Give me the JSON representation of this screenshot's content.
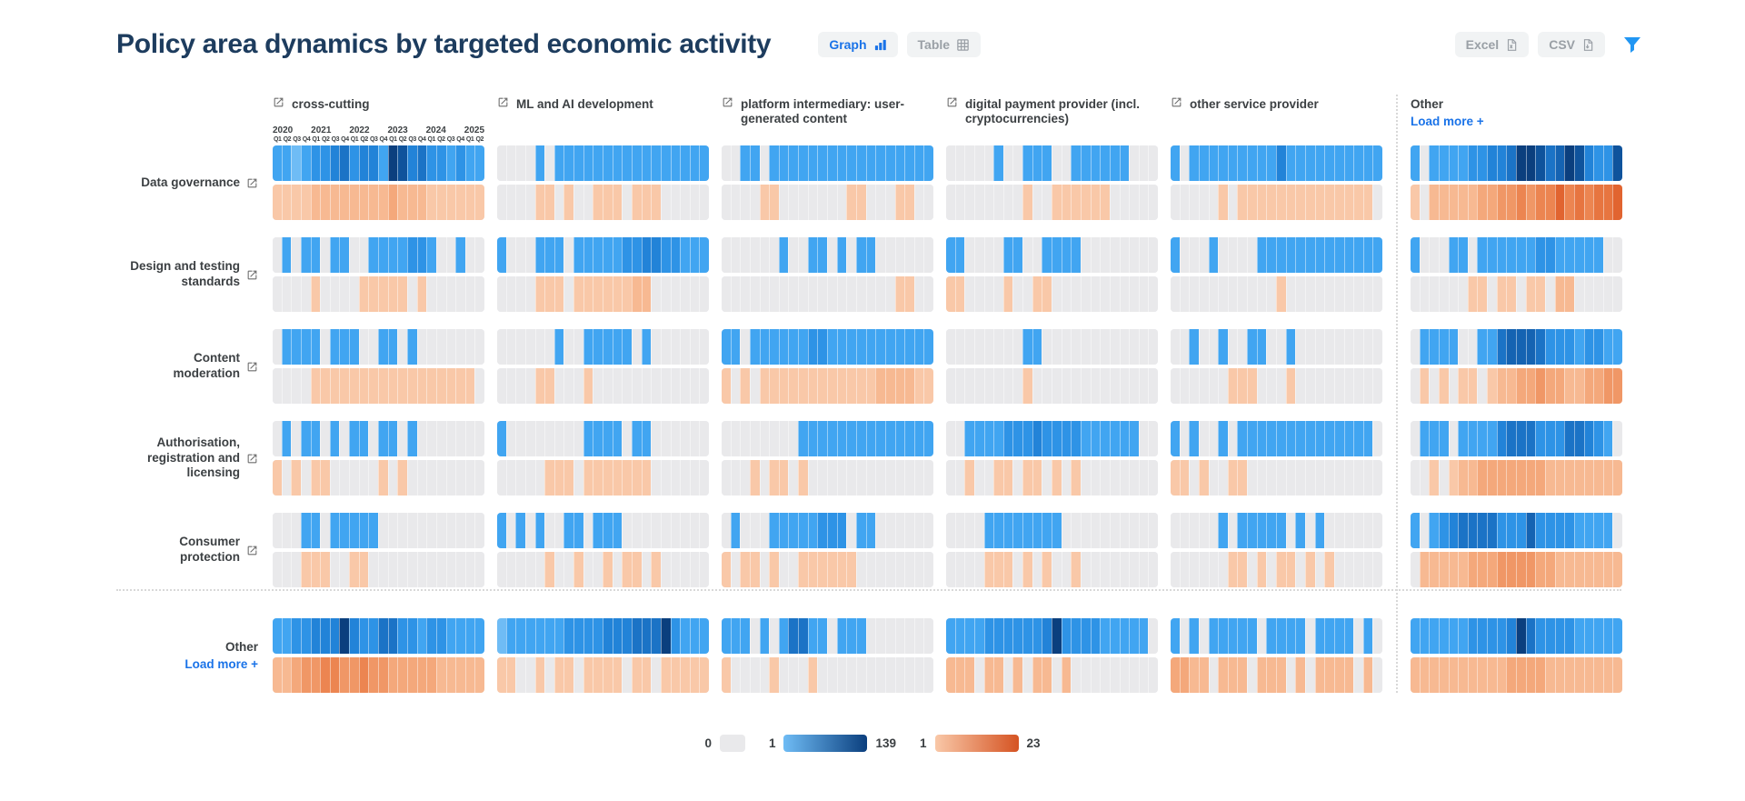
{
  "page": {
    "title": "Policy area dynamics by targeted economic activity"
  },
  "toolbar": {
    "graph_label": "Graph",
    "table_label": "Table",
    "excel_label": "Excel",
    "csv_label": "CSV",
    "filter_icon": "funnel-icon"
  },
  "load_more_label": "Load more +",
  "legend": {
    "zero": "0",
    "blue_min": "1",
    "blue_max": "139",
    "orange_min": "1",
    "orange_max": "23"
  },
  "colors": {
    "title": "#1d3c5e",
    "accent_blue": "#1a73e8",
    "filter_blue": "#2196f3",
    "muted_gray": "#9aa0a6",
    "label_gray": "#3c4043",
    "empty_cell": "#e9e9eb",
    "blue_scale": [
      "#9ed2f7",
      "#6fbcf5",
      "#41a5f1",
      "#2e93e6",
      "#2283d8",
      "#1b73c6",
      "#1563b2",
      "#0f539c",
      "#0b3f7e"
    ],
    "orange_scale": [
      "#fcdcc4",
      "#f9c8a8",
      "#f7b992",
      "#f4a87b",
      "#f09766",
      "#ec8551",
      "#e77540",
      "#e16430",
      "#d55322"
    ]
  },
  "chart_data": {
    "type": "heatmap",
    "title": "Policy area dynamics by targeted economic activity",
    "x_axis": {
      "years": [
        {
          "label": "2020",
          "quarters": 4
        },
        {
          "label": "2021",
          "quarters": 4
        },
        {
          "label": "2022",
          "quarters": 4
        },
        {
          "label": "2023",
          "quarters": 4
        },
        {
          "label": "2024",
          "quarters": 4
        },
        {
          "label": "2025",
          "quarters": 2
        }
      ],
      "quarter_labels": [
        "Q1",
        "Q2",
        "Q3",
        "Q4"
      ],
      "axis_shown_on_first_column_only": true
    },
    "legend": {
      "empty_value": 0,
      "blue_range": [
        1,
        139
      ],
      "orange_range": [
        1,
        23
      ]
    },
    "row_labels": [
      "Data governance",
      "Design and testing standards",
      "Content moderation",
      "Authorisation, registration and licensing",
      "Consumer protection",
      "Other"
    ],
    "col_labels": [
      "cross-cutting",
      "ML and AI development",
      "platform intermediary: user-generated content",
      "digital payment provider (incl. cryptocurrencies)",
      "other service provider",
      "Other"
    ],
    "encoding": "Each strip string = 22 quarters 2020Q1-2025Q2. 0 = no policies (grey cell); digits 1-9 = increasing relative intensity (blue strip scale 1-139, orange strip scale 1-23). Values estimated from pixel shading.",
    "matrix": [
      [
        {
          "blue": "3323 4456 4553 9856 4434 33",
          "orange": "2222 3333 3333 4333 2222 22"
        },
        {
          "blue": "0000 3033 3333 3333 3333 33",
          "orange": "0000 2202 0022 2022 2000 00"
        },
        {
          "blue": "0033 0333 3333 3333 3333 33",
          "orange": "0000 2200 0000 0220 0022 00"
        },
        {
          "blue": "0000 0300 3330 0333 3330 00",
          "orange": "0000 0000 2002 2222 2000 00"
        },
        {
          "blue": "3033 3333 3335 3333 3333 33",
          "orange": "0000 0202 2222 2222 2222 20"
        },
        {
          "blue": "3033 3344 5569 9867 9854 48",
          "orange": "2033 3334 4556 5668 6767 78"
        }
      ],
      [
        {
          "blue": "0303 3033 0033 3344 3003 00",
          "orange": "0000 2000 0222 2202 0000 00"
        },
        {
          "blue": "3000 3330 3333 3445 5443 33",
          "orange": "0000 2220 2222 2233 0000 00"
        },
        {
          "blue": "0000 0030 0330 3033 0000 00",
          "orange": "0000 0000 0000 0000 0022 00"
        },
        {
          "blue": "3300 0033 0033 3300 0000 00",
          "orange": "2200 0020 0220 0000 0000 00"
        },
        {
          "blue": "3000 3000 0333 3333 3333 33",
          "orange": "0000 0000 0002 0000 0000 00"
        },
        {
          "blue": "3000 3303 3333 3443 3333 00",
          "orange": "0000 0022 0220 2203 3000 00"
        }
      ],
      [
        {
          "blue": "0333 3033 3003 3030 0000 00",
          "orange": "0000 2222 2222 2222 2222 20"
        },
        {
          "blue": "0000 0030 0333 3303 0000 00",
          "orange": "0000 2200 0200 0000 0000 00"
        },
        {
          "blue": "3303 3333 3443 3333 3333 33",
          "orange": "2020 2222 2222 2222 3333 22"
        },
        {
          "blue": "0000 0000 3300 0000 0000 00",
          "orange": "0000 0000 2000 0000 0000 00"
        },
        {
          "blue": "0030 0300 3300 3000 0000 00",
          "orange": "0000 0022 2000 2000 0000 00"
        },
        {
          "blue": "0333 3003 3677 7644 4344 33",
          "orange": "0202 0220 2334 4544 3344 55"
        }
      ],
      [
        {
          "blue": "0303 3030 3303 3030 0000 00",
          "orange": "2020 2200 0002 0200 0000 00"
        },
        {
          "blue": "3000 0000 0333 3033 0000 00",
          "orange": "0000 0222 0222 2222 0000 00"
        },
        {
          "blue": "0000 0000 3333 3333 3333 33",
          "orange": "0002 0220 2000 0000 0000 00"
        },
        {
          "blue": "0033 3344 4544 4433 3333 00",
          "orange": "0020 0220 2202 0200 0000 00"
        },
        {
          "blue": "3030 0303 3333 3333 3333 30",
          "orange": "2202 0022 0000 0000 0000 00"
        },
        {
          "blue": "0333 0333 3566 6444 6654 30",
          "orange": "0020 2334 4444 4433 3333 33"
        }
      ],
      [
        {
          "blue": "0003 3033 3330 0000 0000 00",
          "orange": "0002 2200 2200 0000 0000 00"
        },
        {
          "blue": "3030 3003 3033 3000 0000 00",
          "orange": "0000 0200 2002 0220 2000 00"
        },
        {
          "blue": "0300 0333 3344 4033 0000 00",
          "orange": "2022 0200 2222 2200 0000 00"
        },
        {
          "blue": "0000 3333 3333 0000 0000 00",
          "orange": "0000 2220 2020 0200 0000 00"
        },
        {
          "blue": "0000 0303 3333 0303 0000 00",
          "orange": "0000 0022 0202 2020 2000 00"
        },
        {
          "blue": "3034 5666 6444 7444 4333 30",
          "orange": "0333 3344 4555 5443 3333 33"
        }
      ],
      [
        {
          "blue": "3344 5559 5446 6443 4433 33",
          "orange": "3345 5665 5655 4444 4333 33"
        },
        {
          "blue": "2333 3334 4445 5566 6943 33",
          "orange": "2200 2022 0222 2022 0222 22"
        },
        {
          "blue": "3330 3036 6330 3330 0000 00",
          "orange": "2000 0200 0200 0000 0000 00"
        },
        {
          "blue": "3333 4444 4459 4444 3333 30",
          "orange": "3330 3303 0330 3000 0000 00"
        },
        {
          "blue": "3030 3333 3033 3303 3330 30",
          "orange": "4433 0333 0333 0303 3330 30"
        },
        {
          "blue": "3333 3344 4459 6444 4333 33",
          "orange": "3333 3333 3344 4433 3333 33"
        }
      ]
    ]
  }
}
